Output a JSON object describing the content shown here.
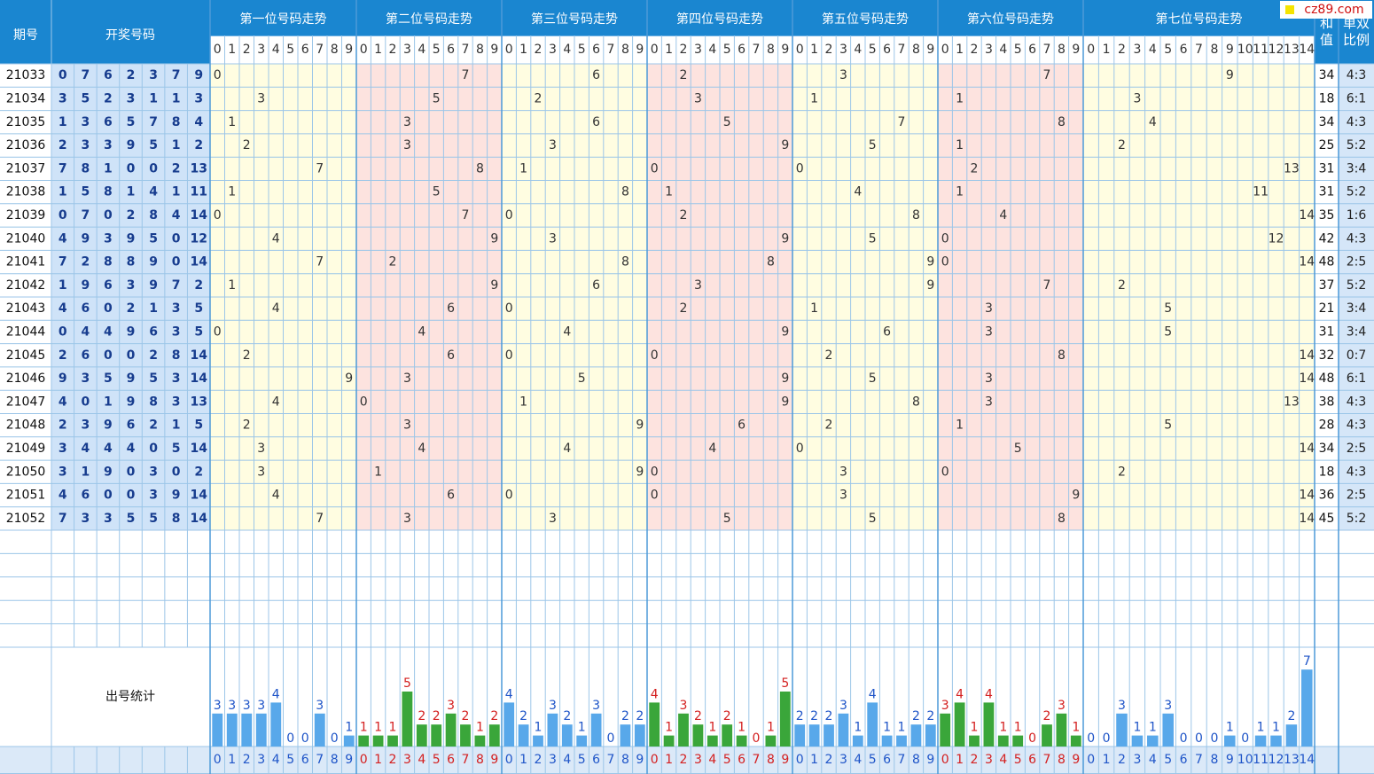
{
  "header": {
    "period": "期号",
    "numbers": "开奖号码",
    "positions": [
      "第一位号码走势",
      "第二位号码走势",
      "第三位号码走势",
      "第四位号码走势",
      "第五位号码走势",
      "第六位号码走势",
      "第七位号码走势"
    ],
    "sum": "和值",
    "ratio": "单双比例",
    "digits": [
      0,
      1,
      2,
      3,
      4,
      5,
      6,
      7,
      8,
      9
    ],
    "digits7": [
      0,
      1,
      2,
      3,
      4,
      5,
      6,
      7,
      8,
      9,
      10,
      11,
      12,
      13,
      14
    ]
  },
  "rows": [
    {
      "period": "21033",
      "numbers": [
        0,
        7,
        6,
        2,
        3,
        7,
        9
      ],
      "sum": 34,
      "ratio": "4:3"
    },
    {
      "period": "21034",
      "numbers": [
        3,
        5,
        2,
        3,
        1,
        1,
        3
      ],
      "sum": 18,
      "ratio": "6:1"
    },
    {
      "period": "21035",
      "numbers": [
        1,
        3,
        6,
        5,
        7,
        8,
        4
      ],
      "sum": 34,
      "ratio": "4:3"
    },
    {
      "period": "21036",
      "numbers": [
        2,
        3,
        3,
        9,
        5,
        1,
        2
      ],
      "sum": 25,
      "ratio": "5:2"
    },
    {
      "period": "21037",
      "numbers": [
        7,
        8,
        1,
        0,
        0,
        2,
        13
      ],
      "sum": 31,
      "ratio": "3:4"
    },
    {
      "period": "21038",
      "numbers": [
        1,
        5,
        8,
        1,
        4,
        1,
        11
      ],
      "sum": 31,
      "ratio": "5:2"
    },
    {
      "period": "21039",
      "numbers": [
        0,
        7,
        0,
        2,
        8,
        4,
        14
      ],
      "sum": 35,
      "ratio": "1:6"
    },
    {
      "period": "21040",
      "numbers": [
        4,
        9,
        3,
        9,
        5,
        0,
        12
      ],
      "sum": 42,
      "ratio": "4:3"
    },
    {
      "period": "21041",
      "numbers": [
        7,
        2,
        8,
        8,
        9,
        0,
        14
      ],
      "sum": 48,
      "ratio": "2:5"
    },
    {
      "period": "21042",
      "numbers": [
        1,
        9,
        6,
        3,
        9,
        7,
        2
      ],
      "sum": 37,
      "ratio": "5:2"
    },
    {
      "period": "21043",
      "numbers": [
        4,
        6,
        0,
        2,
        1,
        3,
        5
      ],
      "sum": 21,
      "ratio": "3:4"
    },
    {
      "period": "21044",
      "numbers": [
        0,
        4,
        4,
        9,
        6,
        3,
        5
      ],
      "sum": 31,
      "ratio": "3:4"
    },
    {
      "period": "21045",
      "numbers": [
        2,
        6,
        0,
        0,
        2,
        8,
        14
      ],
      "sum": 32,
      "ratio": "0:7"
    },
    {
      "period": "21046",
      "numbers": [
        9,
        3,
        5,
        9,
        5,
        3,
        14
      ],
      "sum": 48,
      "ratio": "6:1"
    },
    {
      "period": "21047",
      "numbers": [
        4,
        0,
        1,
        9,
        8,
        3,
        13
      ],
      "sum": 38,
      "ratio": "4:3"
    },
    {
      "period": "21048",
      "numbers": [
        2,
        3,
        9,
        6,
        2,
        1,
        5
      ],
      "sum": 28,
      "ratio": "4:3"
    },
    {
      "period": "21049",
      "numbers": [
        3,
        4,
        4,
        4,
        0,
        5,
        14
      ],
      "sum": 34,
      "ratio": "2:5"
    },
    {
      "period": "21050",
      "numbers": [
        3,
        1,
        9,
        0,
        3,
        0,
        2
      ],
      "sum": 18,
      "ratio": "4:3"
    },
    {
      "period": "21051",
      "numbers": [
        4,
        6,
        0,
        0,
        3,
        9,
        14
      ],
      "sum": 36,
      "ratio": "2:5"
    },
    {
      "period": "21052",
      "numbers": [
        7,
        3,
        3,
        5,
        5,
        8,
        14
      ],
      "sum": 45,
      "ratio": "5:2"
    }
  ],
  "stats": {
    "label": "出号统计",
    "counts": [
      [
        3,
        3,
        3,
        3,
        4,
        0,
        0,
        3,
        0,
        1
      ],
      [
        1,
        1,
        1,
        5,
        2,
        2,
        3,
        2,
        1,
        2
      ],
      [
        4,
        2,
        1,
        3,
        2,
        1,
        3,
        0,
        2,
        2
      ],
      [
        4,
        1,
        3,
        2,
        1,
        2,
        1,
        0,
        1,
        5
      ],
      [
        2,
        2,
        2,
        3,
        1,
        4,
        1,
        1,
        2,
        2
      ],
      [
        3,
        4,
        1,
        4,
        1,
        1,
        0,
        2,
        3,
        1
      ],
      [
        0,
        0,
        3,
        1,
        1,
        3,
        0,
        0,
        0,
        1,
        0,
        1,
        1,
        2,
        7
      ]
    ]
  },
  "logo": "cz89.com"
}
